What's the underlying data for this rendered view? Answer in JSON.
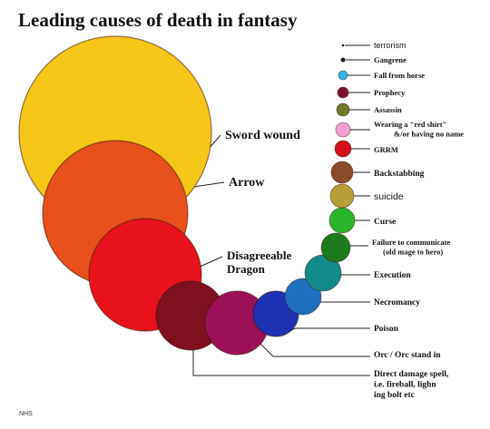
{
  "chart_data": {
    "type": "bubble",
    "title": "Leading causes of death in fantasy",
    "footer": "NHS",
    "series": [
      {
        "label": "Sword wound",
        "color": "#F5C518"
      },
      {
        "label": "Arrow",
        "color": "#E8501C"
      },
      {
        "label": "Disagreeable Dragon",
        "color": "#E8131A"
      },
      {
        "label": "Direct damage spell, i.e. fireball, lighning bolt etc",
        "color": "#7E1020"
      },
      {
        "label": "Orc / Orc stand in",
        "color": "#9A1158"
      },
      {
        "label": "Poison",
        "color": "#1E32B4"
      },
      {
        "label": "Necromancy",
        "color": "#1F6FBF"
      },
      {
        "label": "Execution",
        "color": "#138A8A"
      },
      {
        "label": "Failure to communicate (old mage to hero)",
        "color": "#1C7A1C"
      },
      {
        "label": "Curse",
        "color": "#2BB52B"
      },
      {
        "label": "suicide",
        "color": "#B4A036"
      },
      {
        "label": "Backstabbing",
        "color": "#8B4A2A"
      },
      {
        "label": "GRRM",
        "color": "#D3101A"
      },
      {
        "label": "Wearing a \"red shirt\" &/or having no name",
        "color": "#F2A0D4"
      },
      {
        "label": "Assassin",
        "color": "#6E7A2C"
      },
      {
        "label": "Prophecy",
        "color": "#7A1232"
      },
      {
        "label": "Fall from horse",
        "color": "#2FB8E8"
      },
      {
        "label": "Gangrene",
        "color": "#1A1A1A"
      },
      {
        "label": "terrorism",
        "color": "#1A1A1A"
      }
    ]
  }
}
